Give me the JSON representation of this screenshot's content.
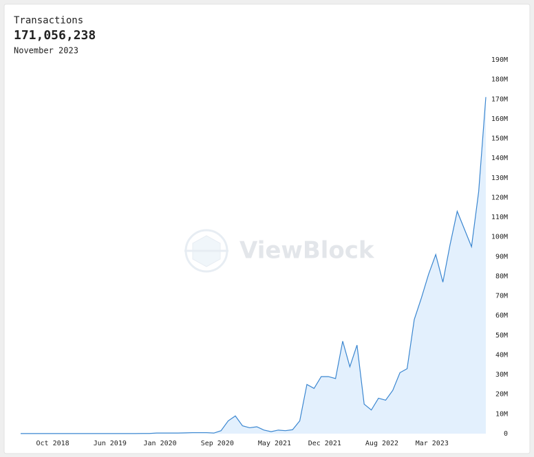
{
  "header": {
    "title": "Transactions",
    "total": "171,056,238",
    "period": "November 2023"
  },
  "watermark": "ViewBlock",
  "chart_data": {
    "type": "area",
    "categories": [
      null,
      null,
      null,
      null,
      "Oct 2018",
      null,
      null,
      null,
      null,
      null,
      null,
      null,
      "Jun 2019",
      null,
      null,
      null,
      null,
      null,
      null,
      "Jan 2020",
      null,
      null,
      null,
      null,
      null,
      null,
      null,
      "Sep 2020",
      null,
      null,
      null,
      null,
      null,
      null,
      null,
      "May 2021",
      null,
      null,
      null,
      null,
      null,
      null,
      "Dec 2021",
      null,
      null,
      null,
      null,
      null,
      null,
      null,
      "Aug 2022",
      null,
      null,
      null,
      null,
      null,
      null,
      "Mar 2023",
      null,
      null,
      null,
      null,
      null,
      null,
      null,
      null
    ],
    "series": [
      {
        "name": "Transactions",
        "color": "#3a86d0",
        "values": [
          50000,
          50000,
          50000,
          50000,
          50000,
          50000,
          50000,
          50000,
          50000,
          50000,
          50000,
          50000,
          50000,
          50000,
          50000,
          50000,
          50000,
          100000,
          100000,
          300000,
          300000,
          300000,
          300000,
          400000,
          500000,
          500000,
          500000,
          300000,
          1500000,
          6500000,
          9000000,
          4000000,
          3000000,
          3500000,
          1800000,
          1000000,
          1800000,
          1500000,
          2000000,
          6500000,
          25000000,
          23000000,
          29000000,
          29000000,
          28000000,
          47000000,
          34000000,
          45000000,
          15000000,
          12000000,
          18000000,
          17000000,
          22000000,
          31000000,
          33000000,
          58000000,
          69000000,
          81000000,
          91000000,
          77000000,
          96000000,
          113000000,
          104000000,
          95000000,
          123000000,
          171056238
        ]
      }
    ],
    "fill": "#e3f0fd",
    "ylim": [
      0,
      190000000
    ],
    "yticks": [
      0,
      {
        "value": 10000000,
        "label": "10M"
      },
      {
        "value": 20000000,
        "label": "20M"
      },
      {
        "value": 30000000,
        "label": "30M"
      },
      {
        "value": 40000000,
        "label": "40M"
      },
      {
        "value": 50000000,
        "label": "50M"
      },
      {
        "value": 60000000,
        "label": "60M"
      },
      {
        "value": 70000000,
        "label": "70M"
      },
      {
        "value": 80000000,
        "label": "80M"
      },
      {
        "value": 90000000,
        "label": "90M"
      },
      {
        "value": 100000000,
        "label": "100M"
      },
      {
        "value": 110000000,
        "label": "110M"
      },
      {
        "value": 120000000,
        "label": "120M"
      },
      {
        "value": 130000000,
        "label": "130M"
      },
      {
        "value": 140000000,
        "label": "140M"
      },
      {
        "value": 150000000,
        "label": "150M"
      },
      {
        "value": 160000000,
        "label": "160M"
      },
      {
        "value": 170000000,
        "label": "170M"
      },
      {
        "value": 180000000,
        "label": "180M"
      },
      {
        "value": 190000000,
        "label": "190M"
      }
    ]
  }
}
